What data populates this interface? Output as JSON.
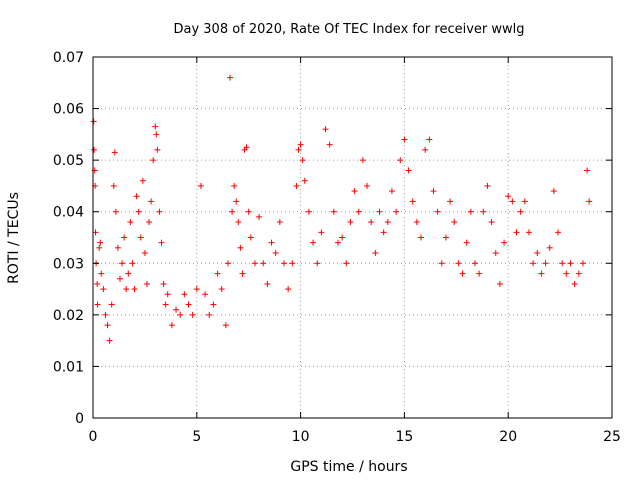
{
  "chart_data": {
    "type": "scatter",
    "title": "Day 308 of 2020, Rate Of TEC Index for receiver wwlg",
    "xlabel": "GPS time / hours",
    "ylabel": "ROTI / TECUs",
    "xlim": [
      0,
      25
    ],
    "ylim": [
      0,
      0.07
    ],
    "x_ticks": [
      "0",
      "5",
      "10",
      "15",
      "20",
      "25"
    ],
    "x_tick_values": [
      0,
      5,
      10,
      15,
      20,
      25
    ],
    "y_ticks": [
      "0",
      "0.01",
      "0.02",
      "0.03",
      "0.04",
      "0.05",
      "0.06",
      "0.07"
    ],
    "y_tick_values": [
      0,
      0.01,
      0.02,
      0.03,
      0.04,
      0.05,
      0.06,
      0.07
    ],
    "grid": true,
    "marker": "plus",
    "marker_color": "#ff0000",
    "series": [
      {
        "x": [
          0.03,
          0.05,
          0.08,
          0.1,
          0.12,
          0.15,
          0.2,
          0.22,
          0.3,
          0.35,
          0.4,
          0.5,
          0.6,
          0.7,
          0.8,
          0.9,
          1.0,
          1.05,
          1.1,
          1.2,
          1.3,
          1.4,
          1.5,
          1.6,
          1.7,
          1.8,
          1.9,
          2.0,
          2.1,
          2.2,
          2.3,
          2.4,
          2.5,
          2.6,
          2.7,
          2.8,
          2.9,
          3.0,
          3.05,
          3.1,
          3.2,
          3.3,
          3.4,
          3.5,
          3.6,
          3.8,
          4.0,
          4.2,
          4.4,
          4.6,
          4.8,
          5.0,
          5.2,
          5.4,
          5.6,
          5.8,
          6.0,
          6.2,
          6.4,
          6.5,
          6.6,
          6.7,
          6.8,
          6.9,
          7.0,
          7.1,
          7.2,
          7.3,
          7.4,
          7.5,
          7.6,
          7.8,
          8.0,
          8.2,
          8.4,
          8.6,
          8.8,
          9.0,
          9.2,
          9.4,
          9.6,
          9.8,
          9.9,
          10.0,
          10.1,
          10.2,
          10.4,
          10.6,
          10.8,
          11.0,
          11.2,
          11.4,
          11.6,
          11.8,
          12.0,
          12.2,
          12.4,
          12.6,
          12.8,
          13.0,
          13.2,
          13.4,
          13.6,
          13.8,
          14.0,
          14.2,
          14.4,
          14.6,
          14.8,
          15.0,
          15.2,
          15.4,
          15.6,
          15.8,
          16.0,
          16.2,
          16.4,
          16.6,
          16.8,
          17.0,
          17.2,
          17.4,
          17.6,
          17.8,
          18.0,
          18.2,
          18.4,
          18.6,
          18.8,
          19.0,
          19.2,
          19.4,
          19.6,
          19.8,
          20.0,
          20.2,
          20.4,
          20.6,
          20.8,
          21.0,
          21.2,
          21.4,
          21.6,
          21.8,
          22.0,
          22.2,
          22.4,
          22.6,
          22.8,
          23.0,
          23.2,
          23.4,
          23.6,
          23.8,
          23.9
        ],
        "y": [
          0.0575,
          0.052,
          0.048,
          0.045,
          0.036,
          0.03,
          0.026,
          0.022,
          0.033,
          0.034,
          0.028,
          0.025,
          0.02,
          0.018,
          0.015,
          0.022,
          0.045,
          0.0515,
          0.04,
          0.033,
          0.027,
          0.03,
          0.035,
          0.025,
          0.028,
          0.038,
          0.03,
          0.025,
          0.043,
          0.04,
          0.035,
          0.046,
          0.032,
          0.026,
          0.038,
          0.042,
          0.05,
          0.0565,
          0.055,
          0.052,
          0.04,
          0.034,
          0.026,
          0.022,
          0.024,
          0.018,
          0.021,
          0.02,
          0.024,
          0.022,
          0.02,
          0.025,
          0.045,
          0.024,
          0.02,
          0.022,
          0.028,
          0.025,
          0.018,
          0.03,
          0.066,
          0.04,
          0.045,
          0.042,
          0.038,
          0.033,
          0.028,
          0.052,
          0.0525,
          0.04,
          0.035,
          0.03,
          0.039,
          0.03,
          0.026,
          0.034,
          0.032,
          0.038,
          0.03,
          0.025,
          0.03,
          0.045,
          0.052,
          0.053,
          0.05,
          0.046,
          0.04,
          0.034,
          0.03,
          0.036,
          0.056,
          0.053,
          0.04,
          0.034,
          0.035,
          0.03,
          0.038,
          0.044,
          0.04,
          0.05,
          0.045,
          0.038,
          0.032,
          0.04,
          0.036,
          0.038,
          0.044,
          0.04,
          0.05,
          0.054,
          0.048,
          0.042,
          0.038,
          0.035,
          0.052,
          0.054,
          0.044,
          0.04,
          0.03,
          0.035,
          0.042,
          0.038,
          0.03,
          0.028,
          0.034,
          0.04,
          0.03,
          0.028,
          0.04,
          0.045,
          0.038,
          0.032,
          0.026,
          0.034,
          0.043,
          0.042,
          0.036,
          0.04,
          0.042,
          0.036,
          0.03,
          0.032,
          0.028,
          0.03,
          0.033,
          0.044,
          0.036,
          0.03,
          0.028,
          0.03,
          0.026,
          0.028,
          0.03,
          0.048,
          0.042
        ]
      }
    ]
  }
}
